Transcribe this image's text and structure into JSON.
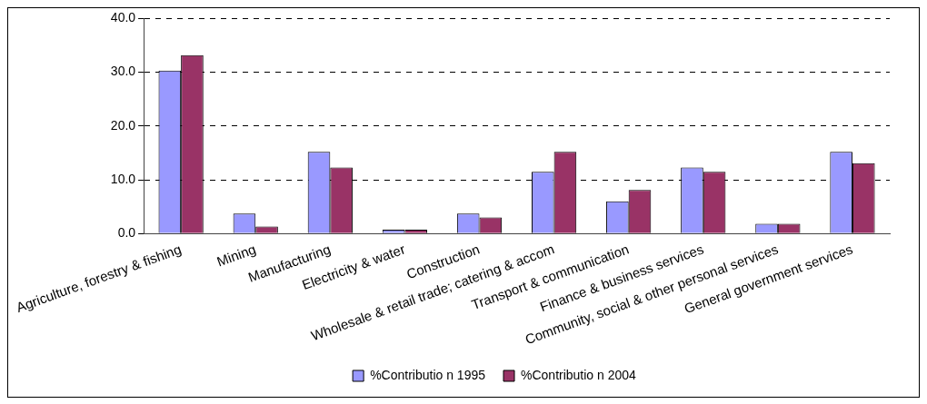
{
  "chart_data": {
    "type": "bar",
    "categories": [
      "Agriculture, forestry & fishing",
      "Mining",
      "Manufacturing",
      "Electricity & water",
      "Construction",
      "Wholesale & retail trade; catering & accom",
      "Transport & communication",
      "Finance & business services",
      "Community, social & other personal services",
      "General government services"
    ],
    "series": [
      {
        "name": "%Contributio n 1995",
        "color": "#9999ff",
        "values": [
          30.3,
          3.7,
          15.2,
          0.7,
          3.7,
          11.5,
          6.0,
          12.3,
          1.8,
          15.2
        ]
      },
      {
        "name": "%Contributio n 2004",
        "color": "#993366",
        "values": [
          33.2,
          1.3,
          12.3,
          0.7,
          3.0,
          15.2,
          8.1,
          11.5,
          1.8,
          13.1
        ]
      }
    ],
    "ylim": [
      0,
      40
    ],
    "yticks": [
      {
        "value": 0,
        "label": "0.0"
      },
      {
        "value": 10,
        "label": "10.0"
      },
      {
        "value": 20,
        "label": "20.0"
      },
      {
        "value": 30,
        "label": "30.0"
      },
      {
        "value": 40,
        "label": "40.0"
      }
    ],
    "grid": "y",
    "legend": "bottom"
  }
}
